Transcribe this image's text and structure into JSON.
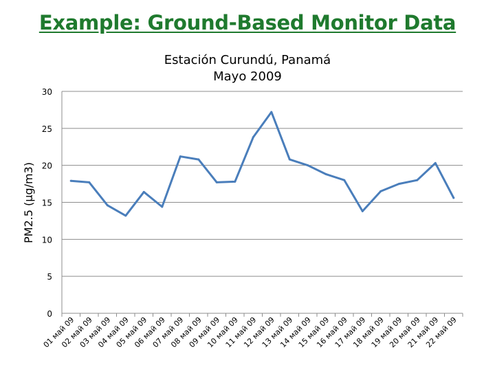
{
  "slide_title": "Example: Ground-Based Monitor Data",
  "colors": {
    "title": "#1f7a2e",
    "line": "#4a7ebb",
    "grid": "#8c8c8c"
  },
  "chart_data": {
    "type": "line",
    "title_line1": "Estación Curundú, Panamá",
    "title_line2": "Mayo 2009",
    "xlabel": "",
    "ylabel": "PM2.5 (μg/m3)",
    "ylim": [
      0,
      30
    ],
    "yticks": [
      0,
      5,
      10,
      15,
      20,
      25,
      30
    ],
    "grid": "horizontal",
    "categories": [
      "01 май 09",
      "02 май 09",
      "03 май 09",
      "04 май 09",
      "05 май 09",
      "06 май 09",
      "07 май 09",
      "08 май 09",
      "09 май 09",
      "10 май 09",
      "11 май 09",
      "12 май 09",
      "13 май 09",
      "14 май 09",
      "15 май 09",
      "16 май 09",
      "17 май 09",
      "18 май 09",
      "19 май 09",
      "20 май 09",
      "21 май 09",
      "22 май 09"
    ],
    "series": [
      {
        "values": [
          17.9,
          17.7,
          14.6,
          13.2,
          16.4,
          14.4,
          21.2,
          20.8,
          17.7,
          17.8,
          23.8,
          27.2,
          20.8,
          20.0,
          18.8,
          18.0,
          13.8,
          16.5,
          17.5,
          18.0,
          20.3,
          15.6
        ]
      }
    ]
  }
}
